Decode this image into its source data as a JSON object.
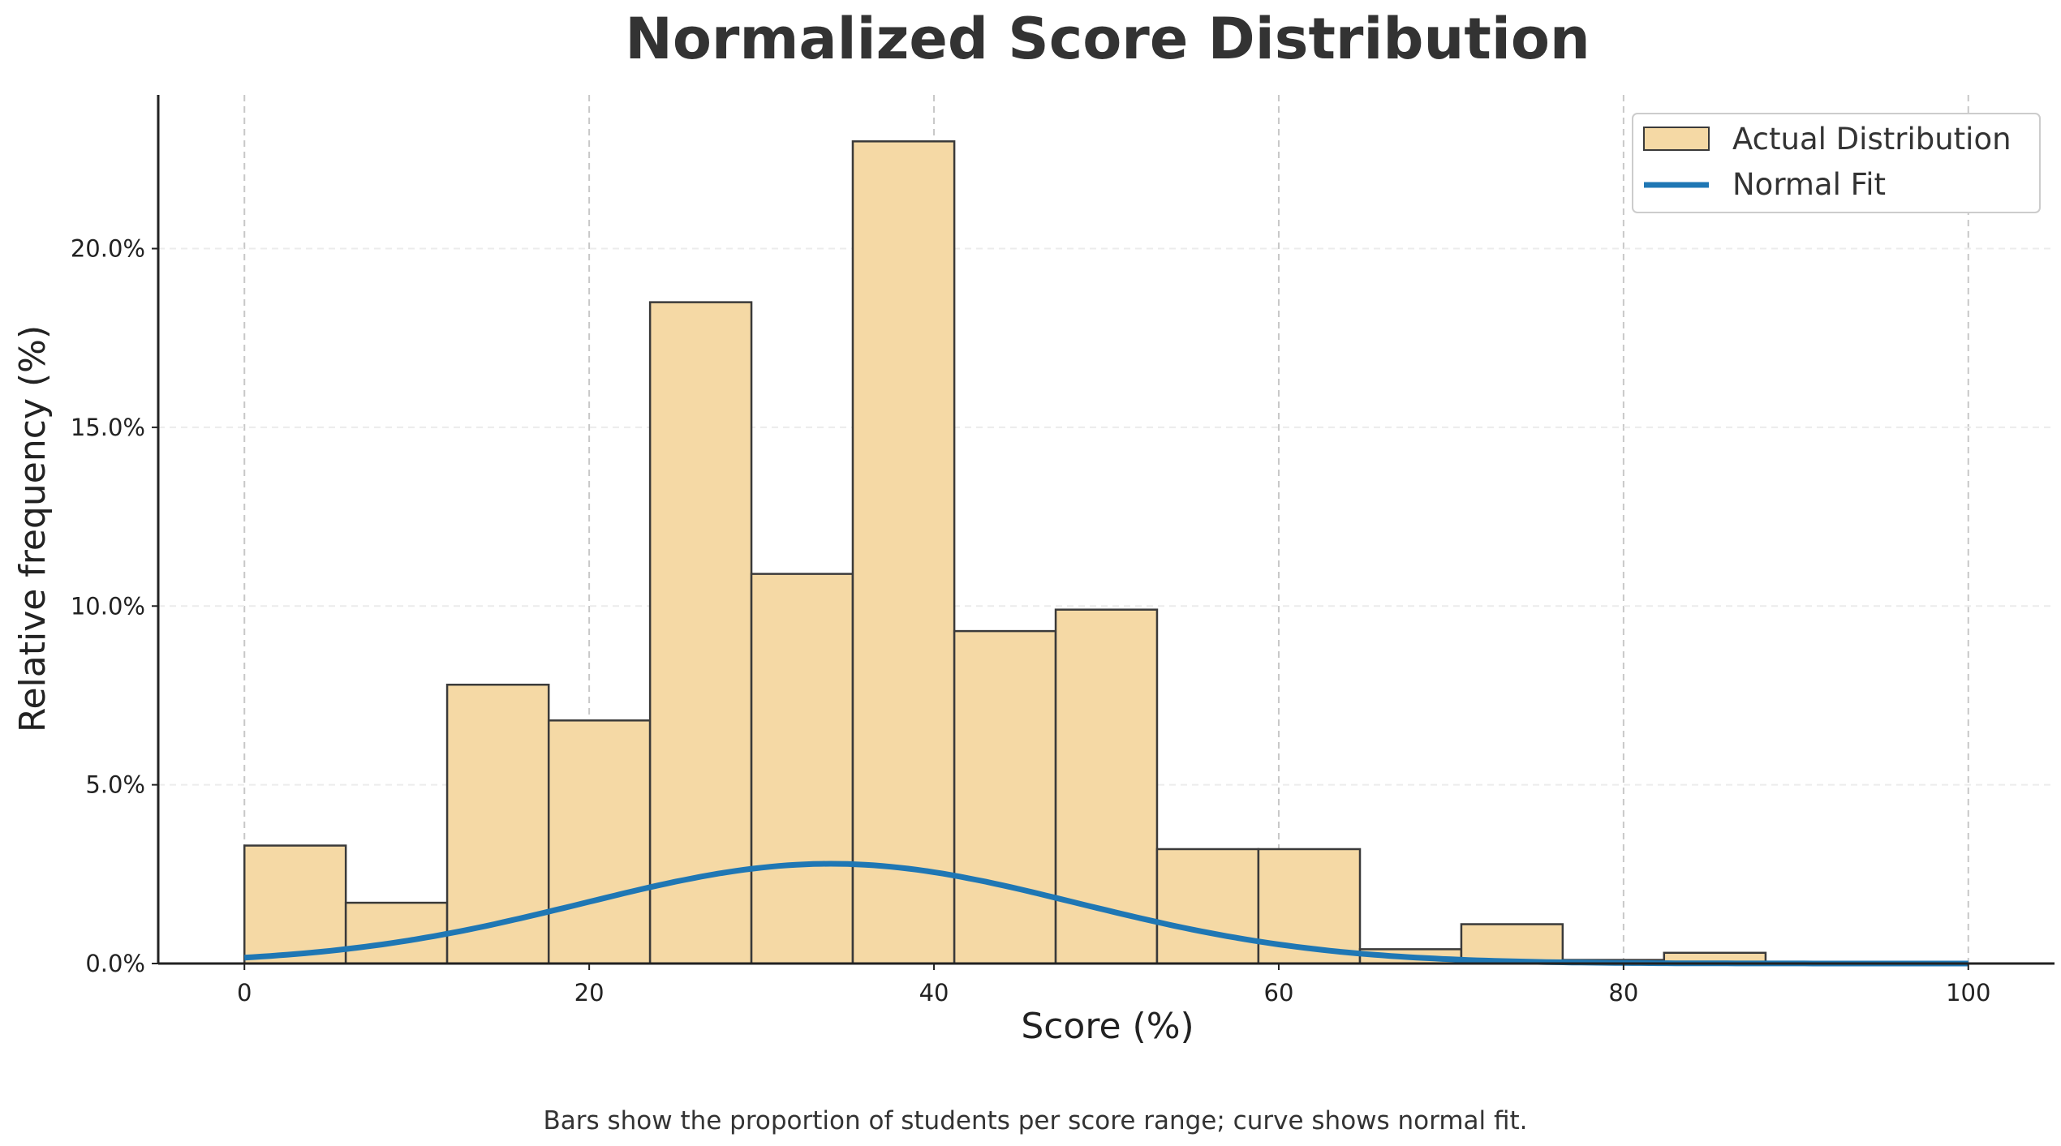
{
  "chart_data": {
    "type": "bar",
    "title": "Normalized Score Distribution",
    "xlabel": "Score (%)",
    "ylabel": "Relative frequency (%)",
    "caption": "Bars show the proportion of students per score range; curve shows normal fit.",
    "xlim": [
      -5,
      105
    ],
    "ylim": [
      0,
      24.3
    ],
    "x_ticks": [
      "0",
      "20",
      "40",
      "60",
      "80",
      "100"
    ],
    "x_tick_values": [
      0,
      20,
      40,
      60,
      80,
      100
    ],
    "y_ticks": [
      "0.0%",
      "5.0%",
      "10.0%",
      "15.0%",
      "20.0%"
    ],
    "y_tick_values": [
      0,
      5,
      10,
      15,
      20
    ],
    "grid": true,
    "legend_position": "top-right",
    "bin_edges": [
      0,
      5.88,
      11.76,
      17.65,
      23.53,
      29.41,
      35.29,
      41.18,
      47.06,
      52.94,
      58.82,
      64.71,
      70.59,
      76.47,
      82.35,
      88.24,
      94.12,
      100
    ],
    "series": [
      {
        "name": "Actual Distribution",
        "type": "histogram",
        "color": "#f5d9a5",
        "edge_color": "#3a3a3a",
        "values": [
          3.3,
          1.7,
          7.8,
          6.8,
          18.5,
          10.9,
          23.0,
          9.3,
          9.9,
          3.2,
          3.2,
          0.4,
          1.1,
          0.1,
          0.3,
          0.0,
          0.0
        ]
      },
      {
        "name": "Normal Fit",
        "type": "line",
        "color": "#1f77b4",
        "mean": 34,
        "std": 14.3,
        "x_range": [
          0,
          100
        ]
      }
    ]
  }
}
